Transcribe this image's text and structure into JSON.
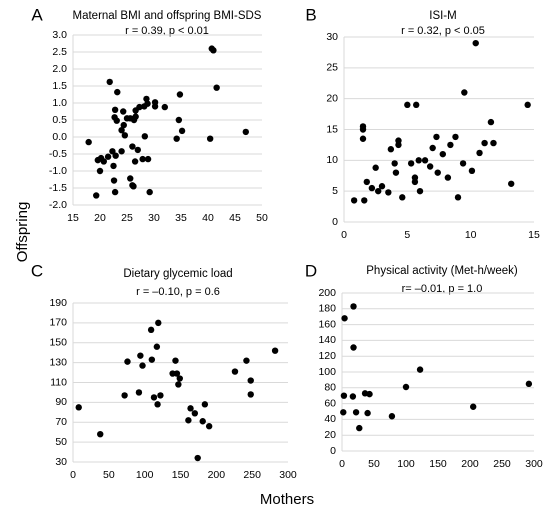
{
  "figure": {
    "ylabel": "Offspring",
    "xlabel": "Mothers"
  },
  "chart_data": [
    {
      "type": "scatter",
      "panel": "A",
      "title": "Maternal BMI and offspring BMI-SDS",
      "stat": "r = 0.39, p < 0.01",
      "xlim": [
        15,
        50
      ],
      "ylim": [
        -2.0,
        3.0
      ],
      "xticks": [
        15,
        20,
        25,
        30,
        35,
        40,
        45,
        50
      ],
      "yticks": [
        -2.0,
        -1.5,
        -1.0,
        -0.5,
        0.0,
        0.5,
        1.0,
        1.5,
        2.0,
        2.5,
        3.0
      ],
      "ytick_labels": [
        "-2.0",
        "-1.5",
        "-1.0",
        "-0.5",
        "0.0",
        "0.5",
        "1.0",
        "1.5",
        "2.0",
        "2.5",
        "3.0"
      ],
      "grid": "horizontal",
      "points": [
        [
          21.8,
          1.62
        ],
        [
          23.2,
          1.32
        ],
        [
          22.8,
          0.8
        ],
        [
          22.7,
          0.58
        ],
        [
          23.1,
          0.48
        ],
        [
          24.3,
          0.75
        ],
        [
          24.4,
          0.35
        ],
        [
          24.0,
          0.2
        ],
        [
          24.6,
          0.05
        ],
        [
          25.0,
          0.55
        ],
        [
          25.6,
          0.55
        ],
        [
          26.6,
          0.6
        ],
        [
          26.3,
          0.5
        ],
        [
          26.6,
          0.78
        ],
        [
          27.3,
          0.88
        ],
        [
          28.2,
          0.9
        ],
        [
          28.6,
          1.12
        ],
        [
          28.8,
          0.98
        ],
        [
          30.2,
          0.9
        ],
        [
          32.0,
          0.88
        ],
        [
          30.2,
          1.02
        ],
        [
          34.8,
          1.25
        ],
        [
          34.6,
          0.5
        ],
        [
          35.2,
          0.18
        ],
        [
          34.2,
          -0.05
        ],
        [
          28.3,
          0.02
        ],
        [
          24.0,
          -0.42
        ],
        [
          26.0,
          -0.28
        ],
        [
          27.0,
          -0.38
        ],
        [
          27.9,
          -0.65
        ],
        [
          28.9,
          -0.65
        ],
        [
          26.5,
          -0.72
        ],
        [
          22.3,
          -0.42
        ],
        [
          22.9,
          -0.55
        ],
        [
          21.5,
          -0.58
        ],
        [
          20.2,
          -0.62
        ],
        [
          20.7,
          -0.72
        ],
        [
          19.6,
          -0.68
        ],
        [
          20.0,
          -1.0
        ],
        [
          22.5,
          -0.85
        ],
        [
          22.6,
          -1.28
        ],
        [
          25.6,
          -1.22
        ],
        [
          26.0,
          -1.42
        ],
        [
          26.2,
          -1.45
        ],
        [
          22.8,
          -1.62
        ],
        [
          29.2,
          -1.62
        ],
        [
          19.3,
          -1.72
        ],
        [
          17.9,
          -0.15
        ],
        [
          40.4,
          -0.05
        ],
        [
          40.7,
          2.6
        ],
        [
          41.0,
          2.55
        ],
        [
          41.6,
          1.45
        ],
        [
          47.0,
          0.15
        ]
      ]
    },
    {
      "type": "scatter",
      "panel": "B",
      "title": "ISI-M",
      "stat": "r = 0.32, p < 0.05",
      "xlim": [
        0,
        15
      ],
      "ylim": [
        0,
        30
      ],
      "xticks": [
        0,
        5,
        10,
        15
      ],
      "yticks": [
        0,
        5,
        10,
        15,
        20,
        25,
        30
      ],
      "grid": "horizontal",
      "points": [
        [
          0.8,
          3.5
        ],
        [
          1.6,
          3.5
        ],
        [
          1.5,
          15.0
        ],
        [
          1.5,
          15.5
        ],
        [
          1.5,
          13.5
        ],
        [
          1.8,
          6.5
        ],
        [
          2.2,
          5.5
        ],
        [
          2.5,
          8.8
        ],
        [
          2.7,
          5.0
        ],
        [
          3.0,
          5.8
        ],
        [
          3.5,
          4.8
        ],
        [
          3.7,
          11.8
        ],
        [
          4.0,
          9.5
        ],
        [
          4.1,
          8.0
        ],
        [
          4.3,
          12.5
        ],
        [
          4.3,
          13.2
        ],
        [
          4.6,
          4.0
        ],
        [
          5.0,
          19.0
        ],
        [
          5.3,
          9.5
        ],
        [
          5.6,
          7.2
        ],
        [
          5.7,
          19.0
        ],
        [
          5.6,
          6.5
        ],
        [
          5.9,
          10.0
        ],
        [
          6.0,
          5.0
        ],
        [
          6.4,
          10.0
        ],
        [
          6.8,
          9.0
        ],
        [
          7.0,
          12.0
        ],
        [
          7.3,
          13.8
        ],
        [
          7.4,
          8.0
        ],
        [
          7.8,
          11.0
        ],
        [
          8.2,
          7.2
        ],
        [
          8.4,
          12.5
        ],
        [
          8.8,
          13.8
        ],
        [
          9.0,
          4.0
        ],
        [
          9.4,
          9.5
        ],
        [
          9.5,
          21.0
        ],
        [
          10.1,
          8.3
        ],
        [
          10.4,
          29.0
        ],
        [
          10.7,
          11.2
        ],
        [
          11.1,
          12.8
        ],
        [
          11.6,
          16.2
        ],
        [
          11.8,
          12.8
        ],
        [
          13.2,
          6.2
        ],
        [
          14.5,
          19.0
        ]
      ]
    },
    {
      "type": "scatter",
      "panel": "C",
      "title": "Dietary glycemic load",
      "stat": "r = –0.10, p = 0.6",
      "xlim": [
        0,
        300
      ],
      "ylim": [
        30,
        190
      ],
      "xticks": [
        0,
        50,
        100,
        150,
        200,
        250,
        300
      ],
      "yticks": [
        30,
        50,
        70,
        90,
        110,
        130,
        150,
        170,
        190
      ],
      "grid": "horizontal",
      "points": [
        [
          8,
          85
        ],
        [
          38,
          58
        ],
        [
          72,
          97
        ],
        [
          76,
          131
        ],
        [
          92,
          100
        ],
        [
          94,
          137
        ],
        [
          97,
          127
        ],
        [
          109,
          163
        ],
        [
          110,
          133
        ],
        [
          113,
          95
        ],
        [
          117,
          146
        ],
        [
          119,
          170
        ],
        [
          118,
          88
        ],
        [
          122,
          97
        ],
        [
          139,
          119
        ],
        [
          143,
          132
        ],
        [
          145,
          119
        ],
        [
          147,
          108
        ],
        [
          149,
          114
        ],
        [
          161,
          72
        ],
        [
          164,
          84
        ],
        [
          170,
          79
        ],
        [
          174,
          34
        ],
        [
          181,
          71
        ],
        [
          184,
          88
        ],
        [
          190,
          66
        ],
        [
          226,
          121
        ],
        [
          242,
          132
        ],
        [
          248,
          112
        ],
        [
          248,
          98
        ],
        [
          282,
          142
        ]
      ]
    },
    {
      "type": "scatter",
      "panel": "D",
      "title": "Physical activity (Met-h/week)",
      "stat": "r= –0.01, p = 1.0",
      "xlim": [
        0,
        300
      ],
      "ylim": [
        0,
        200
      ],
      "xticks": [
        0,
        50,
        100,
        150,
        200,
        250,
        300
      ],
      "yticks": [
        0,
        20,
        40,
        60,
        80,
        100,
        120,
        140,
        160,
        180,
        200
      ],
      "grid": "horizontal",
      "points": [
        [
          4,
          168
        ],
        [
          18,
          183
        ],
        [
          18,
          131
        ],
        [
          3,
          70
        ],
        [
          17,
          69
        ],
        [
          36,
          73
        ],
        [
          43,
          72
        ],
        [
          40,
          48
        ],
        [
          2,
          49
        ],
        [
          22,
          49
        ],
        [
          27,
          29
        ],
        [
          78,
          44
        ],
        [
          100,
          81
        ],
        [
          122,
          103
        ],
        [
          205,
          56
        ],
        [
          292,
          85
        ]
      ]
    }
  ]
}
